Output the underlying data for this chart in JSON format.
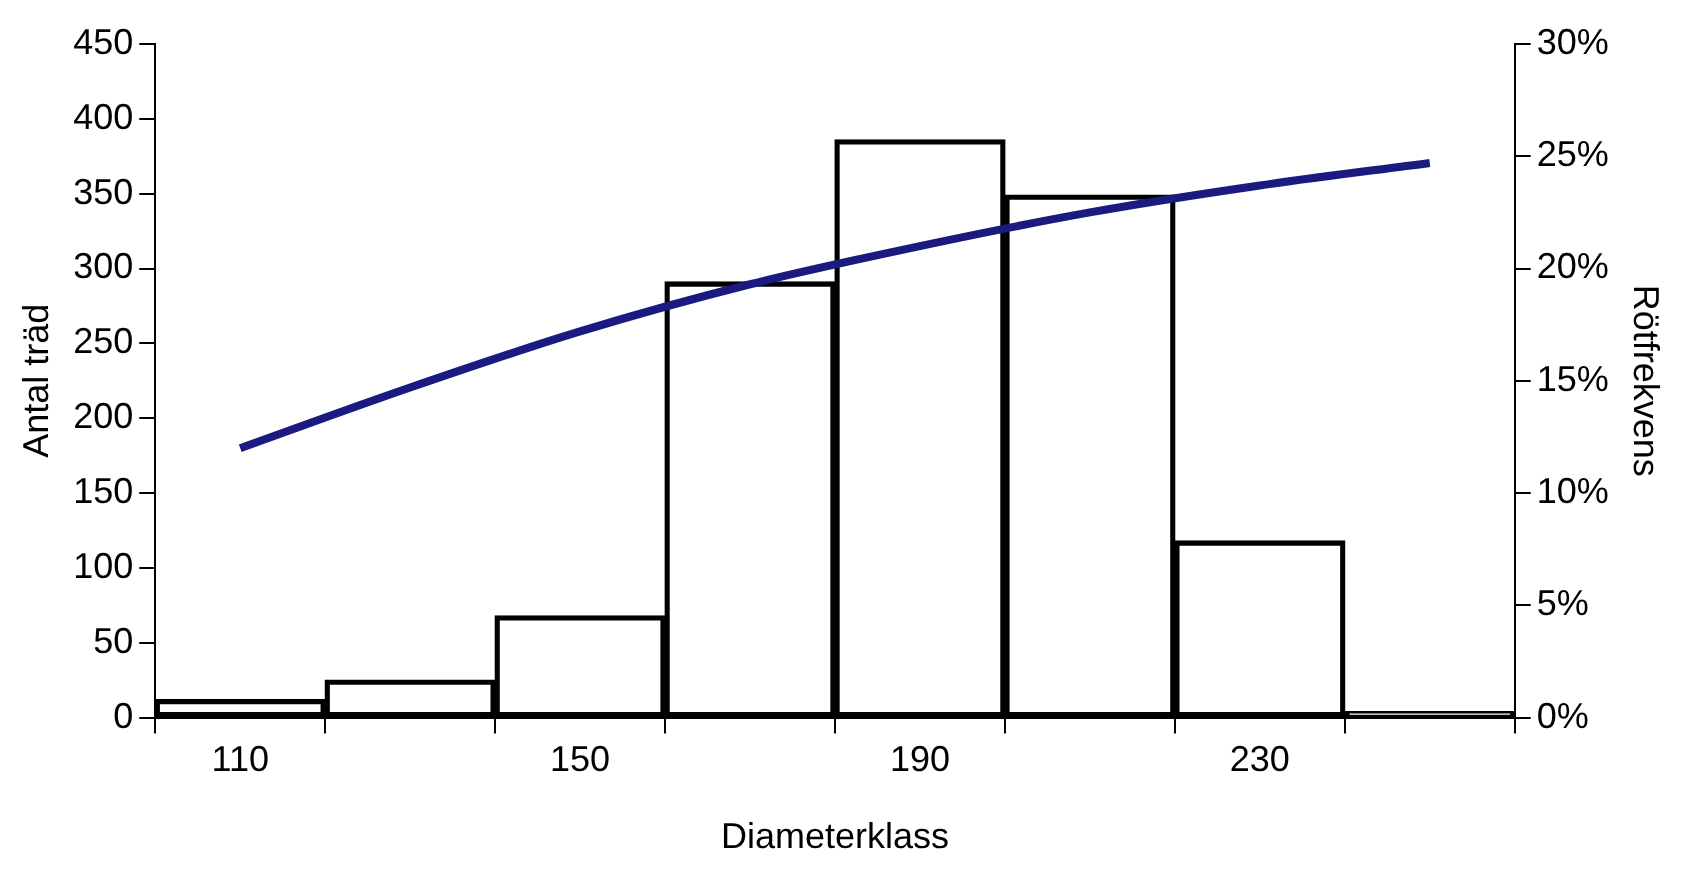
{
  "chart_data": {
    "type": "bar",
    "xlabel": "Diameterklass",
    "ylabel": "Antal träd",
    "y2label": "Rötfrekvens",
    "categories": [
      "110",
      null,
      "150",
      null,
      "190",
      null,
      "230",
      null
    ],
    "series": [
      {
        "color": "#000000",
        "values": [
          12,
          25,
          68,
          291,
          386,
          349,
          118,
          4
        ]
      },
      {
        "type": "line",
        "axis": "y2",
        "color": "#1a1a80",
        "marker": "none",
        "values": [
          12,
          14.7,
          17.2,
          19.3,
          21.0,
          22.5,
          23.7,
          24.7
        ]
      }
    ],
    "ylim": [
      0,
      450
    ],
    "yticks": [
      0,
      50,
      100,
      150,
      200,
      250,
      300,
      350,
      400,
      450
    ],
    "y2lim": [
      0,
      30
    ],
    "y2ticks": [
      {
        "value": 0,
        "label": "0%"
      },
      {
        "value": 5,
        "label": "5%"
      },
      {
        "value": 10,
        "label": "10%"
      },
      {
        "value": 15,
        "label": "15%"
      },
      {
        "value": 20,
        "label": "20%"
      },
      {
        "value": 25,
        "label": "25%"
      },
      {
        "value": 30,
        "label": "30%"
      }
    ],
    "grid": false,
    "legend": false
  }
}
